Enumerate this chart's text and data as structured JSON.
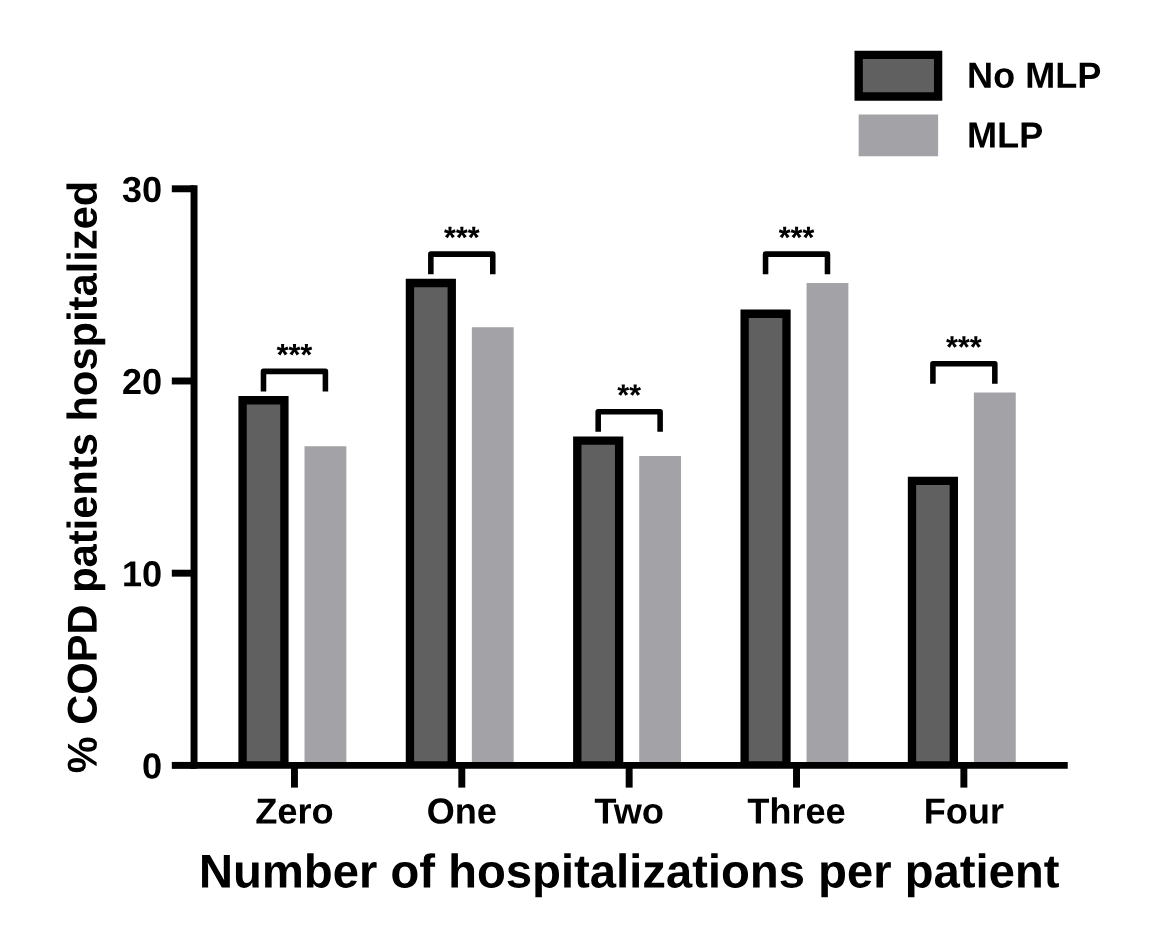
{
  "chart_data": {
    "type": "bar",
    "xlabel": "Number of hospitalizations per patient",
    "ylabel": "% COPD patients hospitalized",
    "categories": [
      "Zero",
      "One",
      "Two",
      "Three",
      "Four"
    ],
    "series": [
      {
        "name": "No MLP",
        "color": "#606060",
        "values": [
          19.0,
          25.1,
          16.9,
          23.5,
          14.8
        ]
      },
      {
        "name": "MLP",
        "color": "#a3a3a7",
        "values": [
          16.6,
          22.8,
          16.1,
          25.1,
          19.4
        ]
      }
    ],
    "ylim": [
      0,
      30
    ],
    "yticks": [
      0,
      10,
      20,
      30
    ],
    "grid": false,
    "legend": "top right",
    "annotations": [
      "***",
      "***",
      "**",
      "***",
      "***"
    ]
  }
}
